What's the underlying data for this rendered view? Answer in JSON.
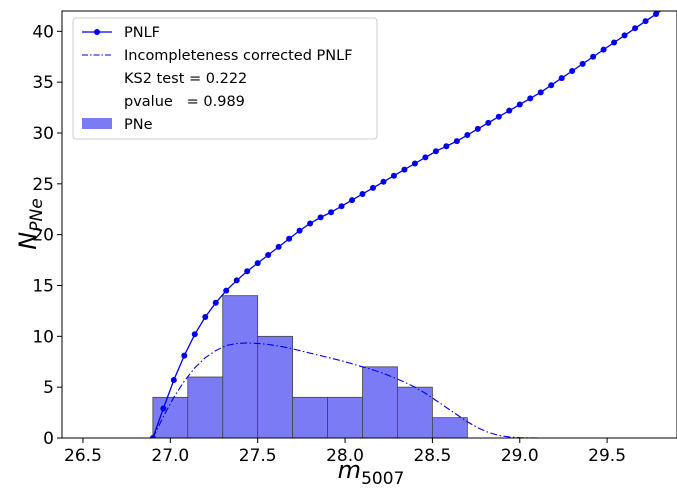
{
  "chart_data": {
    "type": "bar",
    "xlabel_main": "m",
    "xlabel_sub": "5007",
    "ylabel_main": "N",
    "ylabel_sub": "PNe",
    "xlim": [
      26.38,
      29.9
    ],
    "ylim": [
      0,
      42
    ],
    "x_ticks": [
      {
        "value": 26.5,
        "label": "26.5"
      },
      {
        "value": 27.0,
        "label": "27.0"
      },
      {
        "value": 27.5,
        "label": "27.5"
      },
      {
        "value": 28.0,
        "label": "28.0"
      },
      {
        "value": 28.5,
        "label": "28.5"
      },
      {
        "value": 29.0,
        "label": "29.0"
      },
      {
        "value": 29.5,
        "label": "29.5"
      }
    ],
    "y_ticks": [
      {
        "value": 0,
        "label": "0"
      },
      {
        "value": 5,
        "label": "5"
      },
      {
        "value": 10,
        "label": "10"
      },
      {
        "value": 15,
        "label": "15"
      },
      {
        "value": 20,
        "label": "20"
      },
      {
        "value": 25,
        "label": "25"
      },
      {
        "value": 30,
        "label": "30"
      },
      {
        "value": 35,
        "label": "35"
      },
      {
        "value": 40,
        "label": "40"
      }
    ],
    "grid": false,
    "legend_position": "top-left",
    "histogram": {
      "name": "PNe",
      "color": "#7b7bf5",
      "edge_color": "#444444",
      "bins": [
        {
          "left": 26.9,
          "right": 27.1,
          "count": 4
        },
        {
          "left": 27.1,
          "right": 27.3,
          "count": 6
        },
        {
          "left": 27.3,
          "right": 27.5,
          "count": 14
        },
        {
          "left": 27.5,
          "right": 27.7,
          "count": 10
        },
        {
          "left": 27.7,
          "right": 27.9,
          "count": 4
        },
        {
          "left": 27.9,
          "right": 28.1,
          "count": 4
        },
        {
          "left": 28.1,
          "right": 28.3,
          "count": 7
        },
        {
          "left": 28.3,
          "right": 28.5,
          "count": 5
        },
        {
          "left": 28.5,
          "right": 28.7,
          "count": 2
        }
      ]
    },
    "series": [
      {
        "name": "PNLF",
        "style": "solid-line-with-dots",
        "color": "#0000ee",
        "x": [
          26.9,
          26.96,
          27.02,
          27.08,
          27.14,
          27.2,
          27.26,
          27.32,
          27.38,
          27.44,
          27.5,
          27.56,
          27.62,
          27.68,
          27.74,
          27.8,
          27.86,
          27.92,
          27.98,
          28.04,
          28.1,
          28.16,
          28.22,
          28.28,
          28.34,
          28.4,
          28.46,
          28.52,
          28.58,
          28.64,
          28.7,
          28.76,
          28.82,
          28.88,
          28.94,
          29.0,
          29.06,
          29.12,
          29.18,
          29.24,
          29.3,
          29.36,
          29.42,
          29.48,
          29.54,
          29.6,
          29.66,
          29.72,
          29.78,
          29.84,
          29.9
        ],
        "y": [
          0.0,
          2.9,
          5.7,
          8.1,
          10.2,
          11.9,
          13.3,
          14.5,
          15.5,
          16.4,
          17.2,
          18.0,
          18.8,
          19.6,
          20.4,
          21.1,
          21.7,
          22.2,
          22.8,
          23.4,
          24.0,
          24.6,
          25.2,
          25.8,
          26.4,
          27.0,
          27.6,
          28.2,
          28.7,
          29.2,
          29.8,
          30.4,
          31.0,
          31.6,
          32.2,
          32.8,
          33.4,
          34.0,
          34.7,
          35.4,
          36.1,
          36.8,
          37.5,
          38.2,
          38.9,
          39.6,
          40.3,
          41.0,
          41.7,
          42.4,
          43.1
        ]
      },
      {
        "name": "Incompleteness corrected PNLF",
        "style": "dash-dot",
        "color": "#0000ee",
        "x": [
          26.9,
          26.96,
          27.02,
          27.08,
          27.14,
          27.2,
          27.26,
          27.32,
          27.38,
          27.44,
          27.5,
          27.56,
          27.62,
          27.68,
          27.74,
          27.8,
          27.86,
          27.92,
          27.98,
          28.04,
          28.1,
          28.16,
          28.22,
          28.28,
          28.34,
          28.4,
          28.46,
          28.52,
          28.58,
          28.64,
          28.7,
          28.76,
          28.82,
          28.88,
          28.94,
          29.0,
          29.06,
          29.12,
          29.18,
          29.24,
          29.3,
          29.36,
          29.42,
          29.48,
          29.54,
          29.6,
          29.66,
          29.72,
          29.78,
          29.84,
          29.9
        ],
        "y": [
          0.0,
          2.1,
          4.0,
          5.6,
          6.9,
          7.9,
          8.6,
          9.1,
          9.3,
          9.35,
          9.3,
          9.2,
          9.05,
          8.85,
          8.6,
          8.35,
          8.1,
          7.85,
          7.6,
          7.3,
          7.0,
          6.7,
          6.35,
          5.95,
          5.5,
          5.0,
          4.4,
          3.7,
          3.0,
          2.3,
          1.6,
          1.0,
          0.55,
          0.25,
          0.1,
          0.03,
          0.01,
          0,
          0,
          0,
          0,
          0,
          0,
          0,
          0,
          0,
          0,
          0,
          0,
          0,
          0
        ]
      }
    ],
    "legend": [
      {
        "kind": "line-dot",
        "label": "PNLF"
      },
      {
        "kind": "dash-dot",
        "label": "Incompleteness corrected PNLF"
      },
      {
        "kind": "none",
        "label": "KS2 test = 0.222"
      },
      {
        "kind": "none",
        "label": "pvalue   = 0.989"
      },
      {
        "kind": "patch",
        "label": "PNe"
      }
    ]
  }
}
